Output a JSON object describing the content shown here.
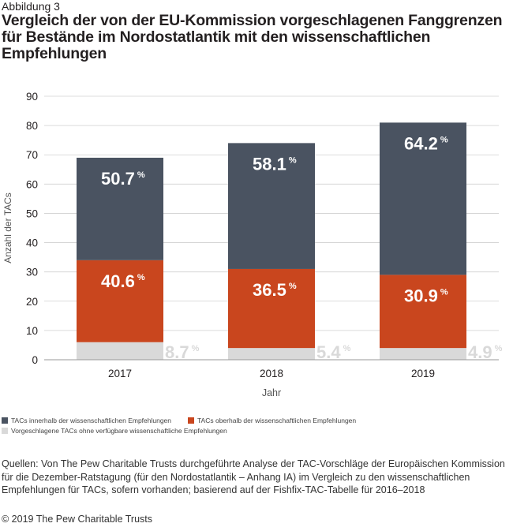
{
  "figure_label": "Abbildung 3",
  "title": "Vergleich der von der EU-Kommission vorgeschlagenen Fanggrenzen für Bestände im Nordostatlantik mit den wissenschaftlichen Empfehlungen",
  "chart_data": {
    "type": "bar",
    "stacked": true,
    "categories": [
      "2017",
      "2018",
      "2019"
    ],
    "xlabel": "Jahr",
    "ylabel": "Anzahl der TACs",
    "ylim": [
      0,
      90
    ],
    "yticks": [
      0,
      10,
      20,
      30,
      40,
      50,
      60,
      70,
      80,
      90
    ],
    "grid": true,
    "series": [
      {
        "name": "Vorgeschlagene TACs ohne verfügbare wissenschaftliche Empfehlungen",
        "color": "#d9d9d9",
        "values": [
          6,
          4,
          4
        ],
        "labels": [
          "8.7",
          "5.4",
          "4.9"
        ]
      },
      {
        "name": "TACs oberhalb der wissenschaftlichen Empfehlungen",
        "color": "#c9461e",
        "values": [
          28,
          27,
          25
        ],
        "labels": [
          "40.6",
          "36.5",
          "30.9"
        ]
      },
      {
        "name": "TACs innerhalb der wissenschaftlichen Empfehlungen",
        "color": "#4a5361",
        "values": [
          35,
          43,
          52
        ],
        "labels": [
          "50.7",
          "58.1",
          "64.2"
        ]
      }
    ],
    "percent_sign": "%"
  },
  "legend": [
    {
      "label": "TACs innerhalb der wissenschaftlichen Empfehlungen",
      "color": "#4a5361"
    },
    {
      "label": "TACs oberhalb der wissenschaftlichen Empfehlungen",
      "color": "#c9461e"
    },
    {
      "label": "Vorgeschlagene TACs ohne verfügbare wissenschaftliche Empfehlungen",
      "color": "#d9d9d9"
    }
  ],
  "source": "Quellen: Von The Pew Charitable Trusts durchgeführte Analyse der TAC-Vorschläge der Europäischen Kommission für die Dezember-Ratstagung (für den Nordostatlantik – Anhang IA) im Vergleich zu den wissenschaftlichen Empfehlungen für TACs, sofern vorhanden; basierend auf der Fishfix-TAC-Tabelle für 2016–2018",
  "copyright": "© 2019 The Pew Charitable Trusts"
}
